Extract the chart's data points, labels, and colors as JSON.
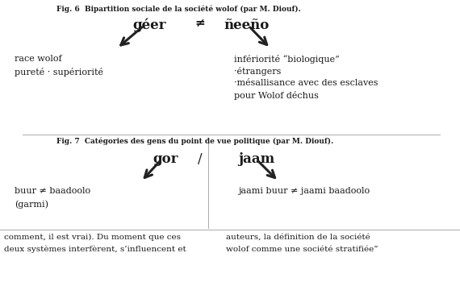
{
  "fig_title": "Fig. 6  Bipartition sociale de la société wolof (par M. Diouf).",
  "fig7_title": "Fig. 7  Catégories des gens du point de vue politique (par M. Diouf).",
  "fig6_left_word": "géer",
  "fig6_neq": "≠",
  "fig6_right_word": "ñeeño",
  "fig6_left_lines": [
    "race wolof",
    "pureté · supériorité"
  ],
  "fig6_right_lines": [
    "infériorité “biologique”",
    "·étrangers",
    "·mésallisance avec des esclaves",
    "pour Wolof déchus"
  ],
  "fig7_left_word": "gor",
  "fig7_slash": "/",
  "fig7_right_word": "jaam",
  "fig7_left_lines": [
    "buur ≠ baadoolo",
    "(garmi)"
  ],
  "fig7_right_lines": [
    "jaami buur ≠ jaami baadoolo"
  ],
  "bottom_left_lines": [
    "comment, il est vrai). Du moment que ces",
    "deux systèmes interfèrent, s’influencent et"
  ],
  "bottom_right_lines": [
    "auteurs, la définition de la société",
    "wolof comme une société stratifiée”"
  ],
  "bg_color": "#ffffff",
  "text_color": "#1a1a1a",
  "arrow_color": "#222222",
  "divider_color": "#aaaaaa"
}
